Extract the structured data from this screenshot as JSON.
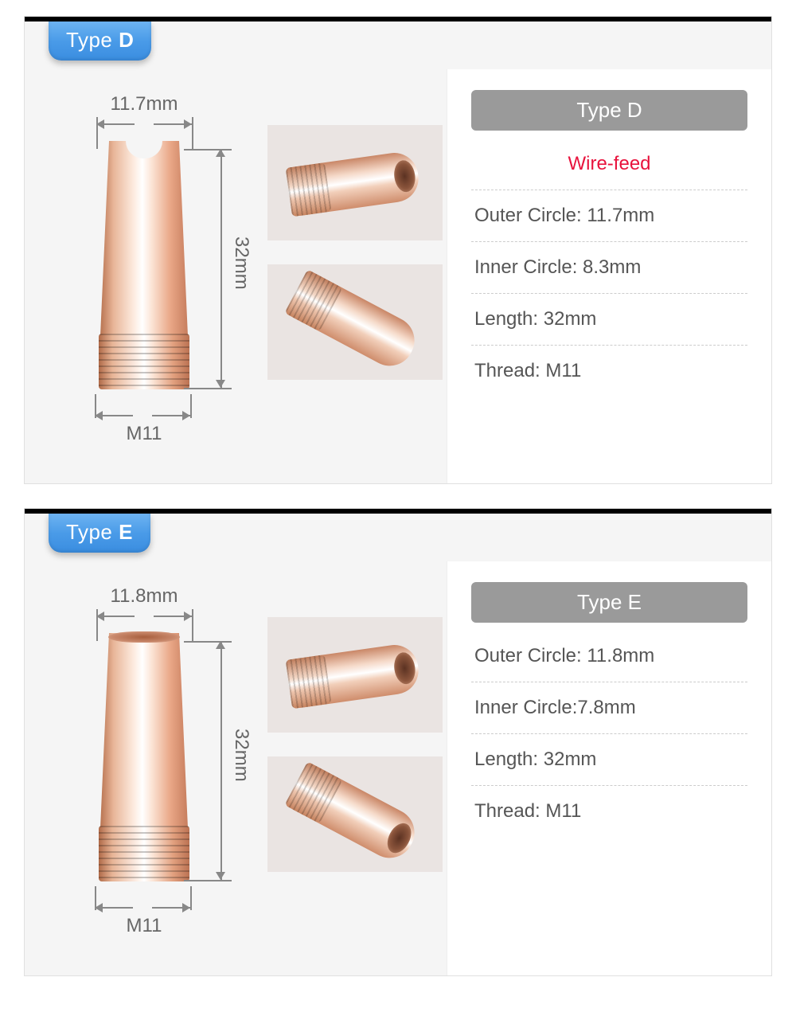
{
  "cards": [
    {
      "tab_prefix": "Type ",
      "tab_letter": "D",
      "diagram": {
        "top": "11.7mm",
        "height": "32mm",
        "thread": "M11",
        "has_notch": true
      },
      "band": "Type D",
      "specs": [
        {
          "text": "Wire-feed",
          "highlight": true
        },
        {
          "text": "Outer Circle: 11.7mm"
        },
        {
          "text": "Inner Circle: 8.3mm"
        },
        {
          "text": "Length: 32mm"
        },
        {
          "text": "Thread: M11"
        }
      ]
    },
    {
      "tab_prefix": "Type ",
      "tab_letter": "E",
      "diagram": {
        "top": "11.8mm",
        "height": "32mm",
        "thread": "M11",
        "has_notch": false
      },
      "band": "Type E",
      "specs": [
        {
          "text": "Outer Circle: 11.8mm"
        },
        {
          "text": "Inner Circle:7.8mm"
        },
        {
          "text": "Length: 32mm"
        },
        {
          "text": "Thread: M11"
        }
      ]
    }
  ],
  "colors": {
    "tab_gradient": [
      "#6db3f2",
      "#4a9be8",
      "#3a8de0"
    ],
    "band_bg": "#9a9a9a",
    "highlight": "#e8133d",
    "copper": [
      "#b87350",
      "#e8b598",
      "#fdebdf",
      "#ffffff",
      "#fce6d8",
      "#e9a787",
      "#c77d5d"
    ]
  }
}
